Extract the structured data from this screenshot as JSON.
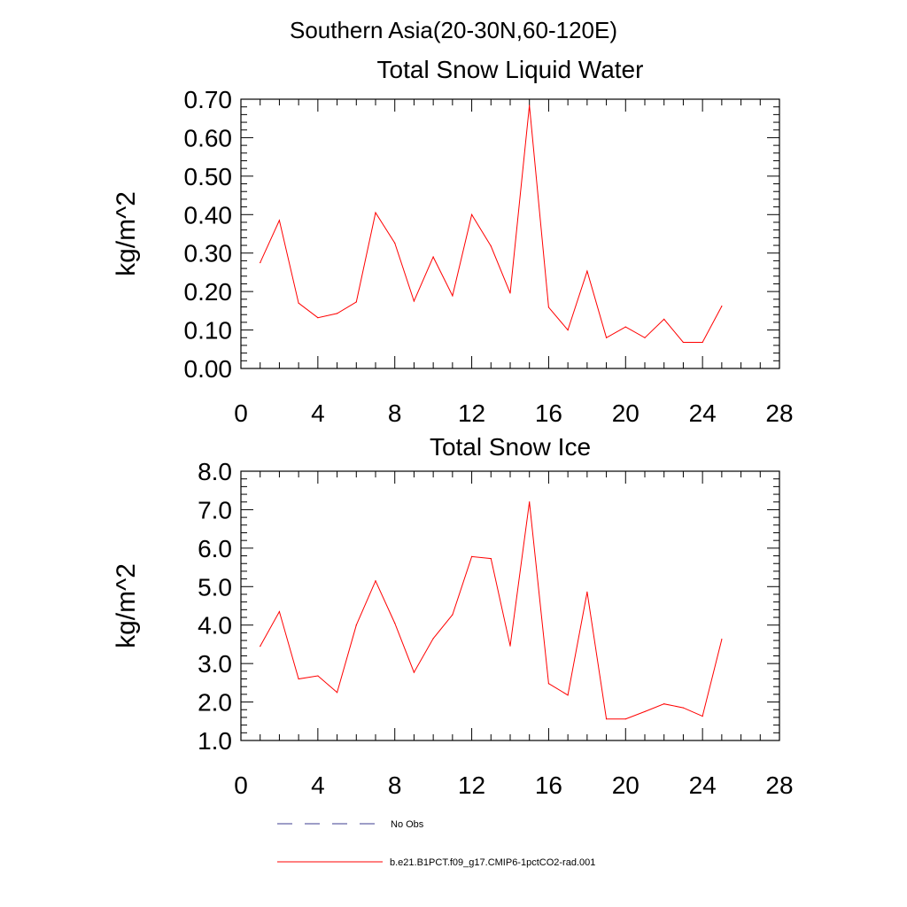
{
  "figure": {
    "suptitle": "Southern Asia(20-30N,60-120E)",
    "legend": [
      {
        "label": "No Obs",
        "style": "dashed",
        "color": "#3d3d8f"
      },
      {
        "label": "b.e21.B1PCT.f09_g17.CMIP6-1pctCO2-rad.001",
        "style": "solid",
        "color": "#ff0000"
      }
    ]
  },
  "chart_data": [
    {
      "type": "line",
      "title": "Total Snow Liquid Water",
      "xlabel": "",
      "ylabel": "kg/m^2",
      "xlim": [
        0,
        28
      ],
      "ylim": [
        0,
        0.7
      ],
      "xticks": [
        "0",
        "4",
        "8",
        "12",
        "16",
        "20",
        "24",
        "28"
      ],
      "yticks": [
        "0.00",
        "0.10",
        "0.20",
        "0.30",
        "0.40",
        "0.50",
        "0.60",
        "0.70"
      ],
      "grid": false,
      "series": [
        {
          "name": "b.e21.B1PCT.f09_g17.CMIP6-1pctCO2-rad.001",
          "color": "#ff0000",
          "x": [
            1,
            2,
            3,
            4,
            5,
            6,
            7,
            8,
            9,
            10,
            11,
            12,
            13,
            14,
            15,
            16,
            17,
            18,
            19,
            20,
            21,
            22,
            23,
            24,
            25
          ],
          "y": [
            0.275,
            0.385,
            0.17,
            0.132,
            0.143,
            0.173,
            0.405,
            0.326,
            0.175,
            0.29,
            0.189,
            0.4,
            0.318,
            0.196,
            0.684,
            0.159,
            0.1,
            0.253,
            0.08,
            0.108,
            0.08,
            0.128,
            0.068,
            0.068,
            0.162
          ]
        }
      ]
    },
    {
      "type": "line",
      "title": "Total Snow Ice",
      "xlabel": "",
      "ylabel": "kg/m^2",
      "xlim": [
        0,
        28
      ],
      "ylim": [
        1,
        8
      ],
      "xticks": [
        "0",
        "4",
        "8",
        "12",
        "16",
        "20",
        "24",
        "28"
      ],
      "yticks": [
        "1.0",
        "2.0",
        "3.0",
        "4.0",
        "5.0",
        "6.0",
        "7.0",
        "8.0"
      ],
      "grid": false,
      "series": [
        {
          "name": "b.e21.B1PCT.f09_g17.CMIP6-1pctCO2-rad.001",
          "color": "#ff0000",
          "x": [
            1,
            2,
            3,
            4,
            5,
            6,
            7,
            8,
            9,
            10,
            11,
            12,
            13,
            14,
            15,
            16,
            17,
            18,
            19,
            20,
            21,
            22,
            23,
            24,
            25
          ],
          "y": [
            3.45,
            4.35,
            2.6,
            2.68,
            2.25,
            4.0,
            5.15,
            4.05,
            2.77,
            3.65,
            4.27,
            5.78,
            5.73,
            3.46,
            7.2,
            2.48,
            2.18,
            4.86,
            1.56,
            1.56,
            1.75,
            1.95,
            1.85,
            1.63,
            3.63
          ]
        }
      ]
    }
  ]
}
